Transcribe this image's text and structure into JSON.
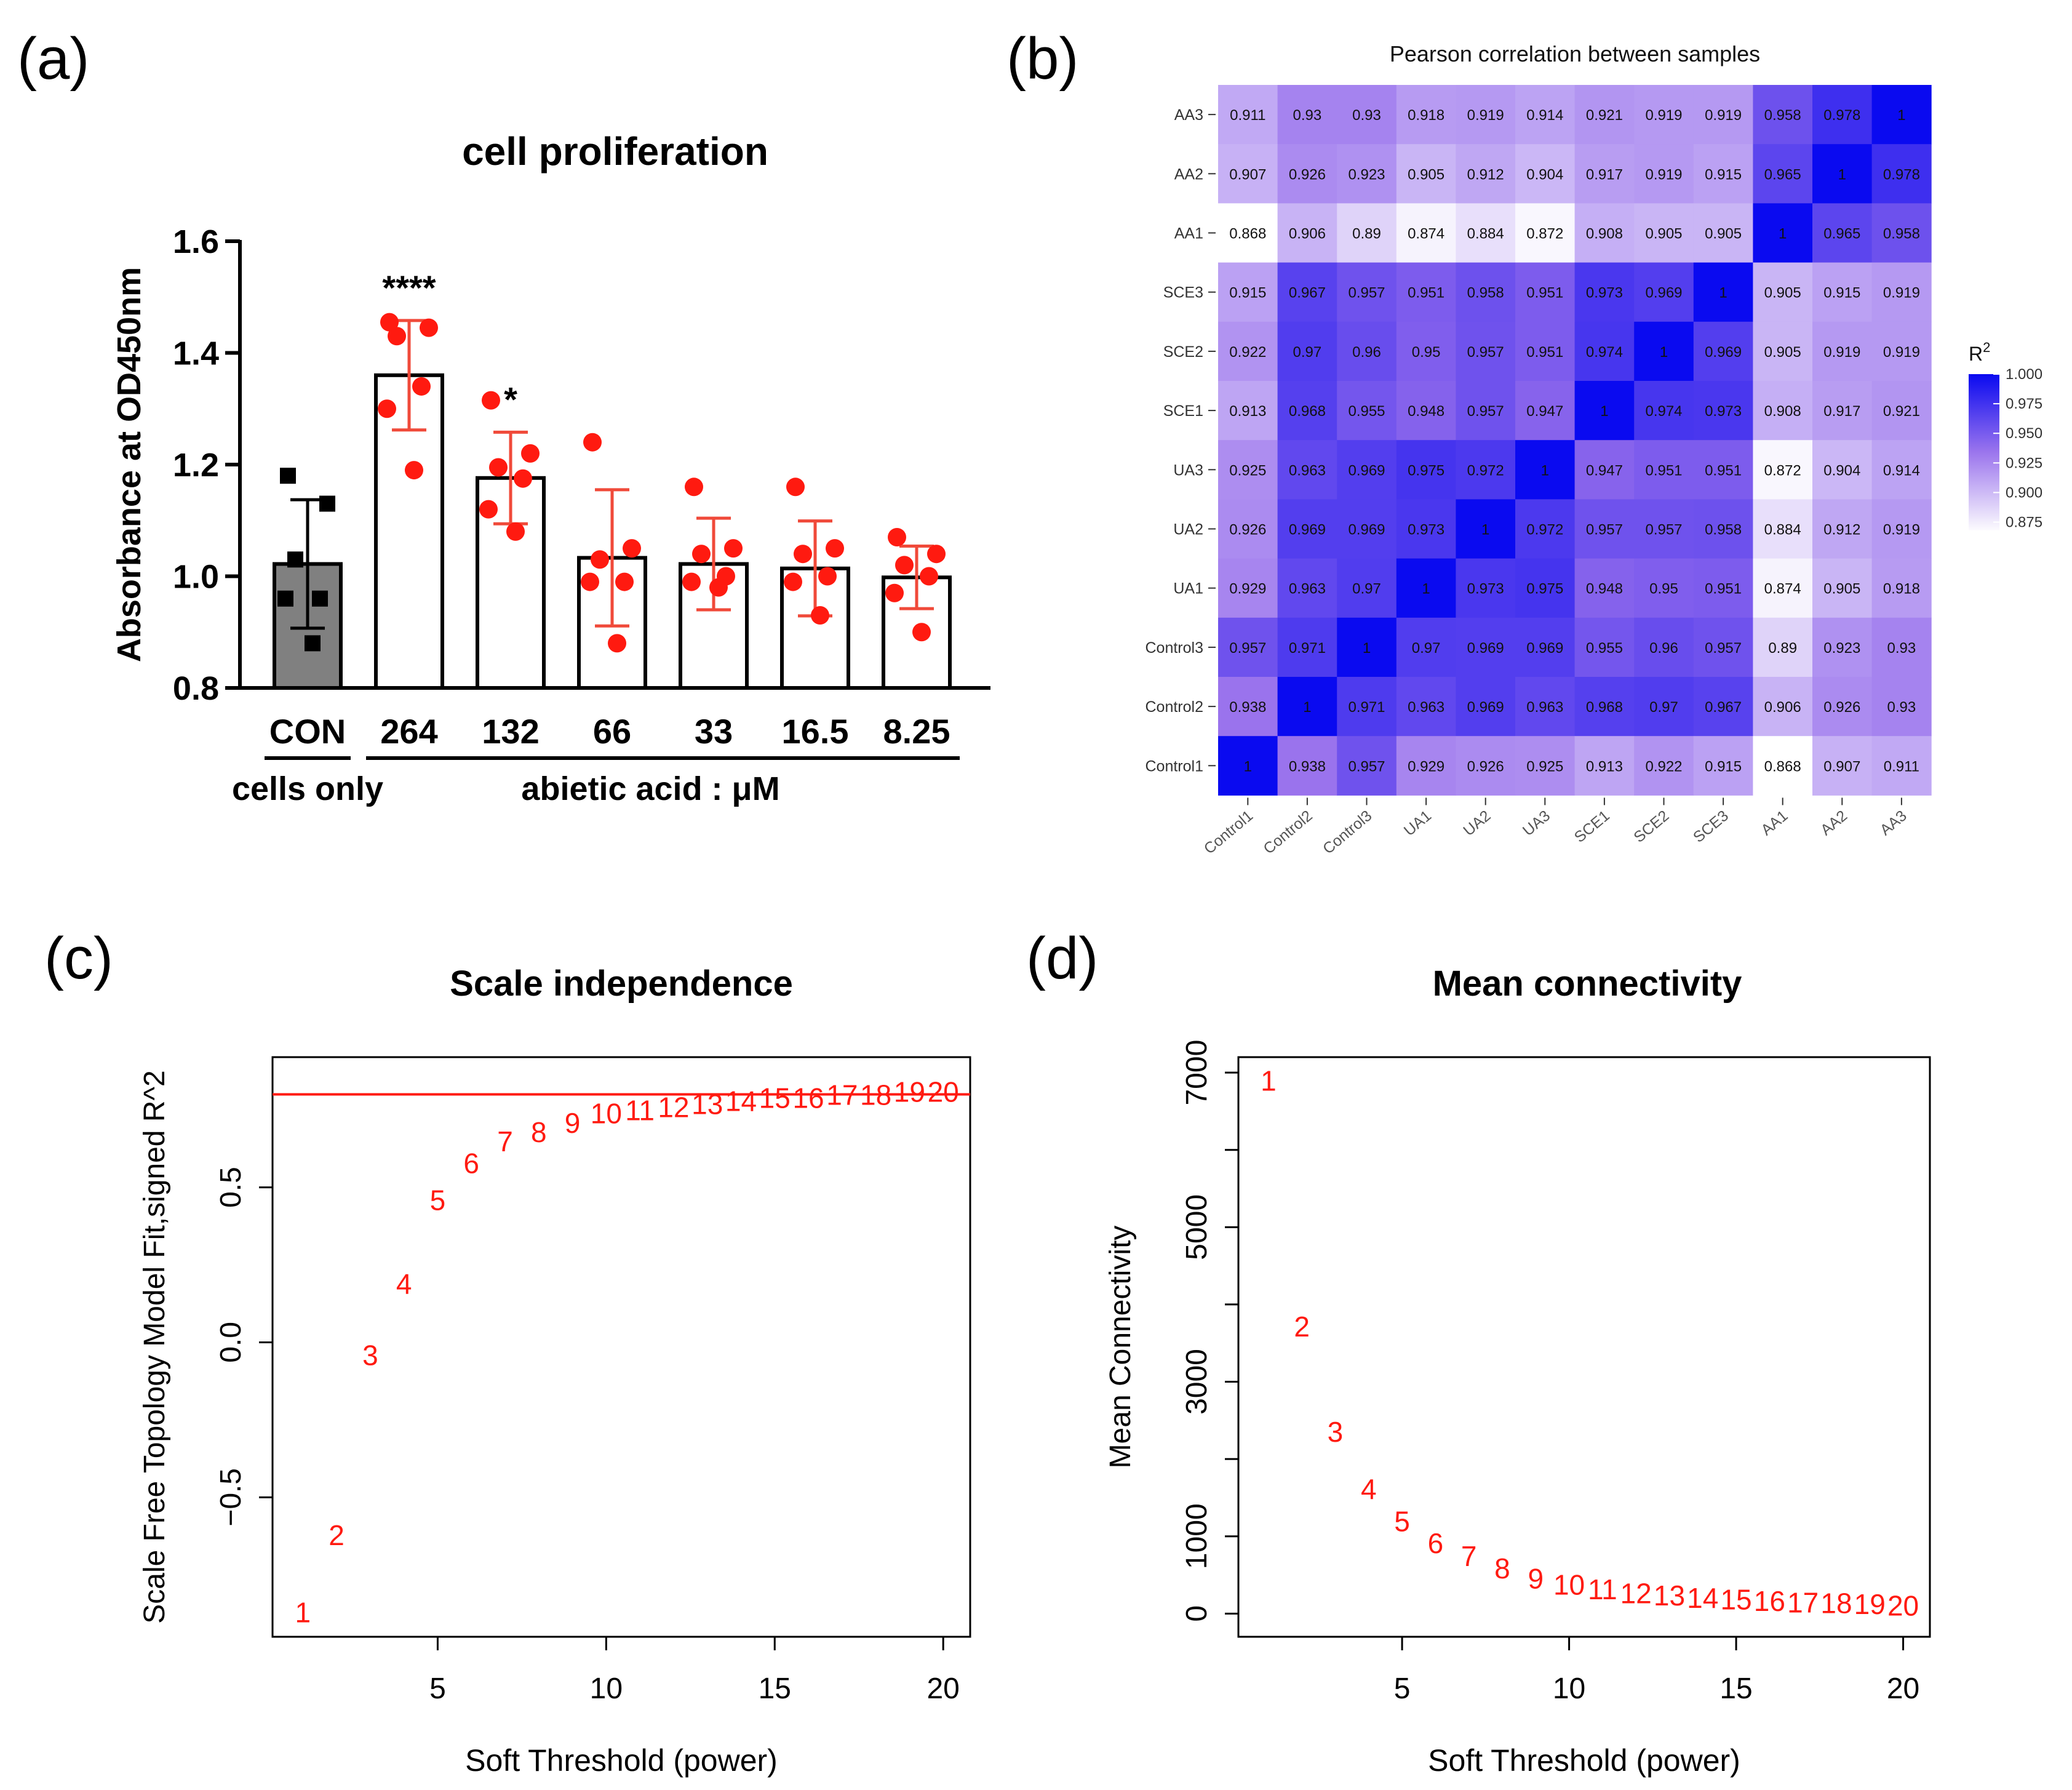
{
  "panel_labels": {
    "a": "(a)",
    "b": "(b)",
    "c": "(c)",
    "d": "(d)"
  },
  "colors": {
    "red": "#ff1a10",
    "gray": "#808080",
    "blue": "#0a0af0",
    "black": "#000000",
    "errbar": "#f04a3a"
  },
  "chart_data": [
    {
      "panel": "a",
      "type": "bar",
      "title": "cell proliferation",
      "ylabel": "Absorbance at OD450nm",
      "ylim": [
        0.8,
        1.6
      ],
      "yticks": [
        "0.8",
        "1.0",
        "1.2",
        "1.4",
        "1.6"
      ],
      "ytick_values": [
        0.8,
        1.0,
        1.2,
        1.4,
        1.6
      ],
      "categories": [
        "CON",
        "264",
        "132",
        "66",
        "33",
        "16.5",
        "8.25"
      ],
      "means": [
        1.022,
        1.36,
        1.176,
        1.033,
        1.022,
        1.014,
        0.998
      ],
      "sd": [
        0.115,
        0.098,
        0.082,
        0.122,
        0.082,
        0.085,
        0.056
      ],
      "points": [
        [
          1.18,
          1.13,
          1.03,
          0.96,
          0.96,
          0.88
        ],
        [
          1.455,
          1.445,
          1.43,
          1.34,
          1.3,
          1.19
        ],
        [
          1.315,
          1.22,
          1.195,
          1.175,
          1.12,
          1.08
        ],
        [
          1.24,
          1.05,
          1.03,
          0.99,
          0.99,
          0.88
        ],
        [
          1.16,
          1.05,
          1.04,
          1.0,
          0.99,
          0.98
        ],
        [
          1.16,
          1.05,
          1.04,
          1.0,
          0.99,
          0.93
        ],
        [
          1.07,
          1.04,
          1.02,
          1.0,
          0.97,
          0.9
        ]
      ],
      "significance": [
        "",
        "****",
        "*",
        "",
        "",
        "",
        ""
      ],
      "groups": [
        {
          "label": "cells only",
          "from": 0,
          "to": 0
        },
        {
          "label": "abietic acid : μM",
          "from": 1,
          "to": 6
        }
      ]
    },
    {
      "panel": "b",
      "type": "heatmap",
      "title": "Pearson correlation between samples",
      "samples": [
        "Control1",
        "Control2",
        "Control3",
        "UA1",
        "UA2",
        "UA3",
        "SCE1",
        "SCE2",
        "SCE3",
        "AA1",
        "AA2",
        "AA3"
      ],
      "matrix": [
        [
          "1",
          "0.938",
          "0.957",
          "0.929",
          "0.926",
          "0.925",
          "0.913",
          "0.922",
          "0.915",
          "0.868",
          "0.907",
          "0.911"
        ],
        [
          "0.938",
          "1",
          "0.971",
          "0.963",
          "0.969",
          "0.963",
          "0.968",
          "0.97",
          "0.967",
          "0.906",
          "0.926",
          "0.93"
        ],
        [
          "0.957",
          "0.971",
          "1",
          "0.97",
          "0.969",
          "0.969",
          "0.955",
          "0.96",
          "0.957",
          "0.89",
          "0.923",
          "0.93"
        ],
        [
          "0.929",
          "0.963",
          "0.97",
          "1",
          "0.973",
          "0.975",
          "0.948",
          "0.95",
          "0.951",
          "0.874",
          "0.905",
          "0.918"
        ],
        [
          "0.926",
          "0.969",
          "0.969",
          "0.973",
          "1",
          "0.972",
          "0.957",
          "0.957",
          "0.958",
          "0.884",
          "0.912",
          "0.919"
        ],
        [
          "0.925",
          "0.963",
          "0.969",
          "0.975",
          "0.972",
          "1",
          "0.947",
          "0.951",
          "0.951",
          "0.872",
          "0.904",
          "0.914"
        ],
        [
          "0.913",
          "0.968",
          "0.955",
          "0.948",
          "0.957",
          "0.947",
          "1",
          "0.974",
          "0.973",
          "0.908",
          "0.917",
          "0.921"
        ],
        [
          "0.922",
          "0.97",
          "0.96",
          "0.95",
          "0.957",
          "0.951",
          "0.974",
          "1",
          "0.969",
          "0.905",
          "0.919",
          "0.919"
        ],
        [
          "0.915",
          "0.967",
          "0.957",
          "0.951",
          "0.958",
          "0.951",
          "0.973",
          "0.969",
          "1",
          "0.905",
          "0.915",
          "0.919"
        ],
        [
          "0.868",
          "0.906",
          "0.89",
          "0.874",
          "0.884",
          "0.872",
          "0.908",
          "0.905",
          "0.905",
          "1",
          "0.965",
          "0.958"
        ],
        [
          "0.907",
          "0.926",
          "0.923",
          "0.905",
          "0.912",
          "0.904",
          "0.917",
          "0.919",
          "0.915",
          "0.965",
          "1",
          "0.978"
        ],
        [
          "0.911",
          "0.93",
          "0.93",
          "0.918",
          "0.919",
          "0.914",
          "0.921",
          "0.919",
          "0.919",
          "0.958",
          "0.978",
          "1"
        ]
      ],
      "legend_title": "R",
      "legend_title_sup": "2",
      "legend_ticks": [
        "1.000",
        "0.975",
        "0.950",
        "0.925",
        "0.900",
        "0.875"
      ],
      "legend_tick_values": [
        1.0,
        0.975,
        0.95,
        0.925,
        0.9,
        0.875
      ],
      "color_range": [
        0.868,
        1.0
      ],
      "color_low": "#ffffff",
      "color_high": "#0a0af0"
    },
    {
      "panel": "c",
      "type": "scatter",
      "title": "Scale independence",
      "xlabel": "Soft Threshold (power)",
      "ylabel": "Scale Free Topology Model Fit,signed R^2",
      "xlim": [
        0.1,
        20.8
      ],
      "ylim": [
        -0.95,
        0.92
      ],
      "xticks": [
        "5",
        "10",
        "15",
        "20"
      ],
      "xtick_values": [
        5,
        10,
        15,
        20
      ],
      "yticks": [
        "−0.5",
        "0.0",
        "0.5"
      ],
      "ytick_values": [
        -0.5,
        0.0,
        0.5
      ],
      "reference_line": 0.8,
      "x": [
        1,
        2,
        3,
        4,
        5,
        6,
        7,
        8,
        9,
        10,
        11,
        12,
        13,
        14,
        15,
        16,
        17,
        18,
        19,
        20
      ],
      "y": [
        -0.87,
        -0.62,
        -0.04,
        0.19,
        0.46,
        0.58,
        0.65,
        0.68,
        0.71,
        0.74,
        0.75,
        0.76,
        0.77,
        0.78,
        0.79,
        0.79,
        0.8,
        0.8,
        0.81,
        0.81
      ],
      "point_labels": [
        "1",
        "2",
        "3",
        "4",
        "5",
        "6",
        "7",
        "8",
        "9",
        "10",
        "11",
        "12",
        "13",
        "14",
        "15",
        "16",
        "17",
        "18",
        "19",
        "20"
      ]
    },
    {
      "panel": "d",
      "type": "scatter",
      "title": "Mean connectivity",
      "xlabel": "Soft Threshold (power)",
      "ylabel": "Mean Connectivity",
      "xlim": [
        0.1,
        20.8
      ],
      "ylim": [
        -300,
        7200
      ],
      "xticks": [
        "5",
        "10",
        "15",
        "20"
      ],
      "xtick_values": [
        5,
        10,
        15,
        20
      ],
      "yticks": [
        "0",
        "1000",
        "3000",
        "5000",
        "7000"
      ],
      "ytick_values": [
        0,
        1000,
        3000,
        5000,
        7000
      ],
      "minor_ytick_values": [
        2000,
        4000,
        6000
      ],
      "x": [
        1,
        2,
        3,
        4,
        5,
        6,
        7,
        8,
        9,
        10,
        11,
        12,
        13,
        14,
        15,
        16,
        17,
        18,
        19,
        20
      ],
      "y": [
        6900,
        3720,
        2360,
        1620,
        1200,
        920,
        750,
        590,
        460,
        380,
        320,
        270,
        240,
        210,
        190,
        170,
        150,
        140,
        130,
        110
      ],
      "point_labels": [
        "1",
        "2",
        "3",
        "4",
        "5",
        "6",
        "7",
        "8",
        "9",
        "10",
        "11",
        "12",
        "13",
        "14",
        "15",
        "16",
        "17",
        "18",
        "19",
        "20"
      ]
    }
  ]
}
